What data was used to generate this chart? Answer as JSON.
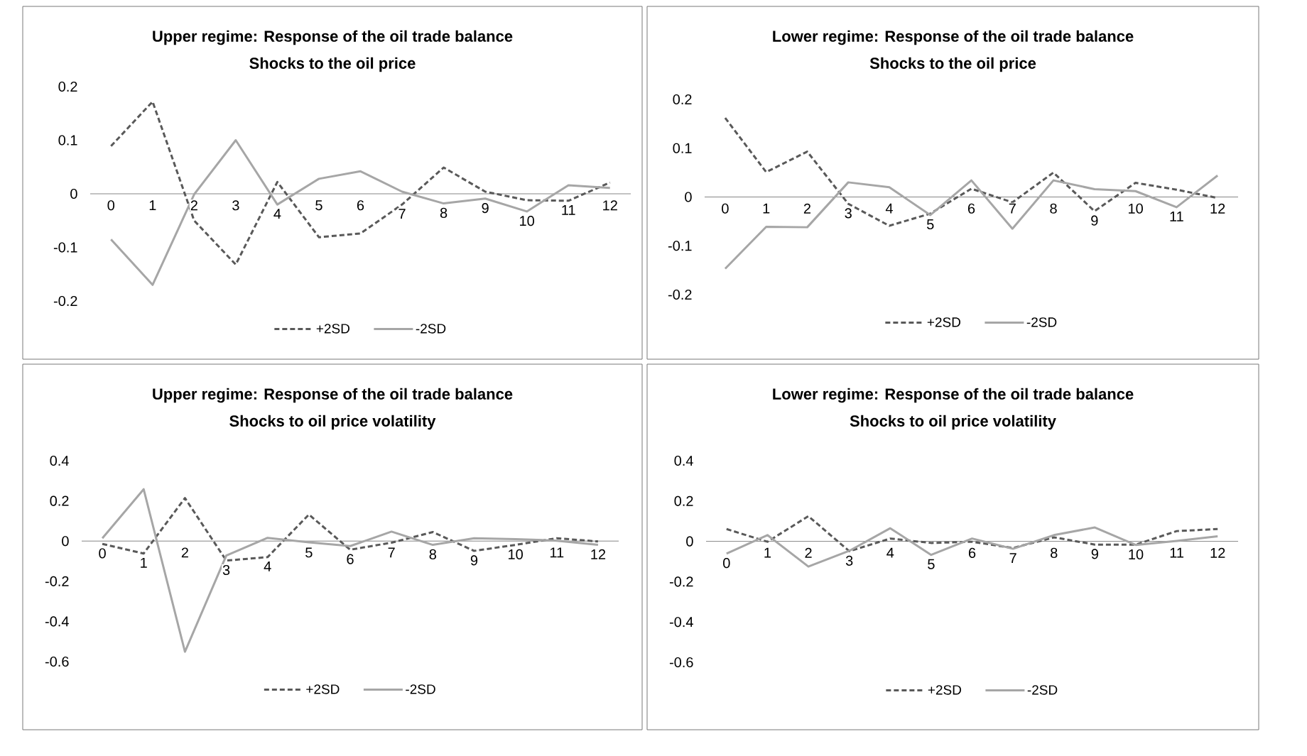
{
  "chart_data": [
    {
      "type": "line",
      "title": "Upper regime: Response of the oil trade balance",
      "subtitle": "Shocks to the oil price",
      "categories": [
        "0",
        "1",
        "2",
        "3",
        "4",
        "5",
        "6",
        "7",
        "8",
        "9",
        "10",
        "11",
        "12"
      ],
      "ylim": [
        -0.2,
        0.2
      ],
      "yticks": [
        -0.2,
        -0.1,
        0,
        0.1,
        0.2
      ],
      "legend": "bottom",
      "marker": "none",
      "series": [
        {
          "name": "+2SD",
          "color": "#595959",
          "line_style": "dashed",
          "values": [
            0.089,
            0.172,
            -0.05,
            -0.132,
            0.022,
            -0.081,
            -0.074,
            -0.02,
            0.049,
            0.004,
            -0.012,
            -0.013,
            0.021
          ]
        },
        {
          "name": "-2SD",
          "color": "#a6a6a6",
          "line_style": "solid",
          "values": [
            -0.085,
            -0.17,
            -0.001,
            0.1,
            -0.02,
            0.028,
            0.042,
            0.004,
            -0.018,
            -0.009,
            -0.033,
            0.016,
            0.011
          ]
        }
      ]
    },
    {
      "type": "line",
      "title": "Lower regime: Response of the oil trade balance",
      "subtitle": "Shocks to the oil price",
      "categories": [
        "0",
        "1",
        "2",
        "3",
        "4",
        "5",
        "6",
        "7",
        "8",
        "9",
        "10",
        "11",
        "12"
      ],
      "ylim": [
        -0.2,
        0.2
      ],
      "yticks": [
        -0.2,
        -0.1,
        0,
        0.1,
        0.2
      ],
      "legend": "bottom",
      "marker": "none",
      "series": [
        {
          "name": "+2SD",
          "color": "#595959",
          "line_style": "dashed",
          "values": [
            0.162,
            0.051,
            0.093,
            -0.014,
            -0.059,
            -0.034,
            0.017,
            -0.011,
            0.05,
            -0.029,
            0.029,
            0.015,
            -0.002
          ]
        },
        {
          "name": "-2SD",
          "color": "#a6a6a6",
          "line_style": "solid",
          "values": [
            -0.147,
            -0.061,
            -0.062,
            0.03,
            0.02,
            -0.037,
            0.034,
            -0.065,
            0.034,
            0.016,
            0.012,
            -0.021,
            0.044
          ]
        }
      ]
    },
    {
      "type": "line",
      "title": "Upper regime: Response of the oil trade balance",
      "subtitle": "Shocks to oil price volatility",
      "categories": [
        "0",
        "1",
        "2",
        "3",
        "4",
        "5",
        "6",
        "7",
        "8",
        "9",
        "10",
        "11",
        "12"
      ],
      "ylim": [
        -0.6,
        0.4
      ],
      "yticks": [
        -0.6,
        -0.4,
        -0.2,
        0,
        0.2,
        0.4
      ],
      "legend": "bottom",
      "marker": "none",
      "series": [
        {
          "name": "+2SD",
          "color": "#595959",
          "line_style": "dashed",
          "values": [
            -0.014,
            -0.062,
            0.214,
            -0.097,
            -0.08,
            0.132,
            -0.043,
            -0.008,
            0.045,
            -0.049,
            -0.019,
            0.014,
            -0.002
          ]
        },
        {
          "name": "-2SD",
          "color": "#a6a6a6",
          "line_style": "solid",
          "values": [
            0.014,
            0.258,
            -0.551,
            -0.072,
            0.016,
            -0.006,
            -0.025,
            0.047,
            -0.019,
            0.014,
            0.01,
            0.002,
            -0.019
          ]
        }
      ]
    },
    {
      "type": "line",
      "title": "Lower regime: Response of the oil trade balance",
      "subtitle": "Shocks to oil price volatility",
      "categories": [
        "0",
        "1",
        "2",
        "3",
        "4",
        "5",
        "6",
        "7",
        "8",
        "9",
        "10",
        "11",
        "12"
      ],
      "ylim": [
        -0.6,
        0.4
      ],
      "yticks": [
        -0.6,
        -0.4,
        -0.2,
        0,
        0.2,
        0.4
      ],
      "legend": "bottom",
      "marker": "none",
      "series": [
        {
          "name": "+2SD",
          "color": "#595959",
          "line_style": "dashed",
          "values": [
            0.061,
            -0.002,
            0.125,
            -0.049,
            0.014,
            -0.008,
            -0.002,
            -0.033,
            0.02,
            -0.016,
            -0.016,
            0.051,
            0.061
          ]
        },
        {
          "name": "-2SD",
          "color": "#a6a6a6",
          "line_style": "solid",
          "values": [
            -0.061,
            0.031,
            -0.125,
            -0.047,
            0.065,
            -0.067,
            0.014,
            -0.037,
            0.031,
            0.069,
            -0.018,
            0.002,
            0.025
          ]
        }
      ]
    }
  ]
}
